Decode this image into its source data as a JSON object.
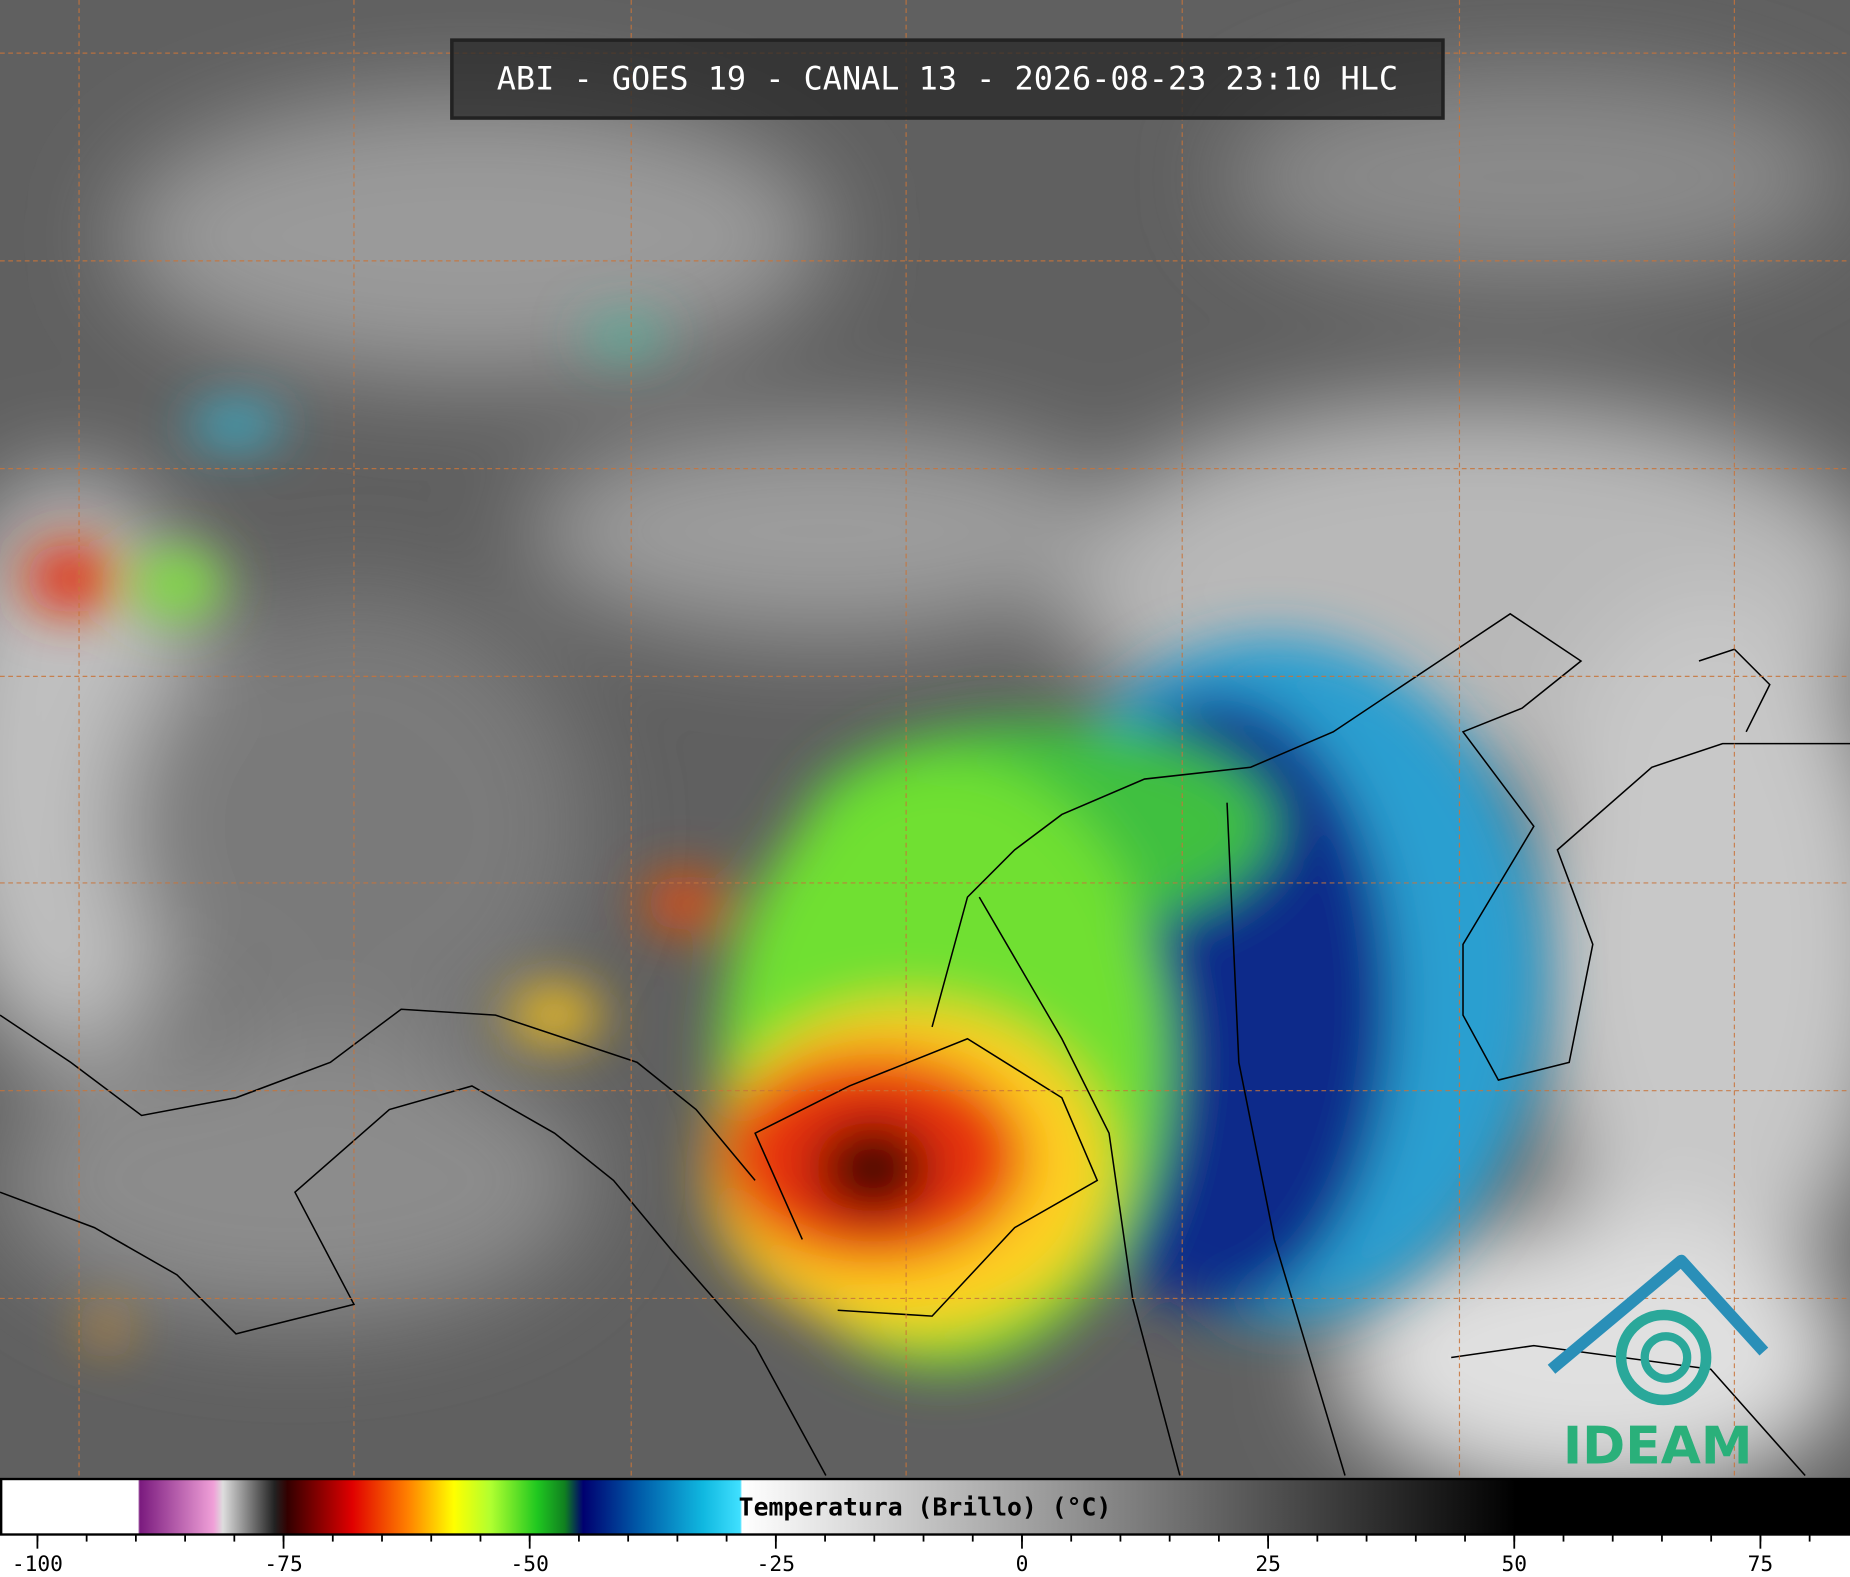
{
  "map": {
    "title": "ABI - GOES 19 - CANAL 13 - 2026-08-23 23:10 HLC",
    "logo": "IDEAM",
    "colorbar": {
      "label": "Temperatura (Brillo) (°C)",
      "xlim": [
        -103.8,
        84.1
      ],
      "ticks": [
        -100,
        -75,
        -50,
        -25,
        0,
        25,
        50,
        75
      ],
      "minor_ticks": [
        -100,
        -95,
        -90,
        -85,
        -80,
        -75,
        -70,
        -65,
        -60,
        -55,
        -50,
        -45,
        -40,
        -35,
        -30,
        -25,
        -20,
        -15,
        -10,
        -5,
        0,
        5,
        10,
        15,
        20,
        25,
        30,
        35,
        40,
        45,
        50,
        55,
        60,
        65,
        70,
        75,
        80
      ]
    }
  }
}
